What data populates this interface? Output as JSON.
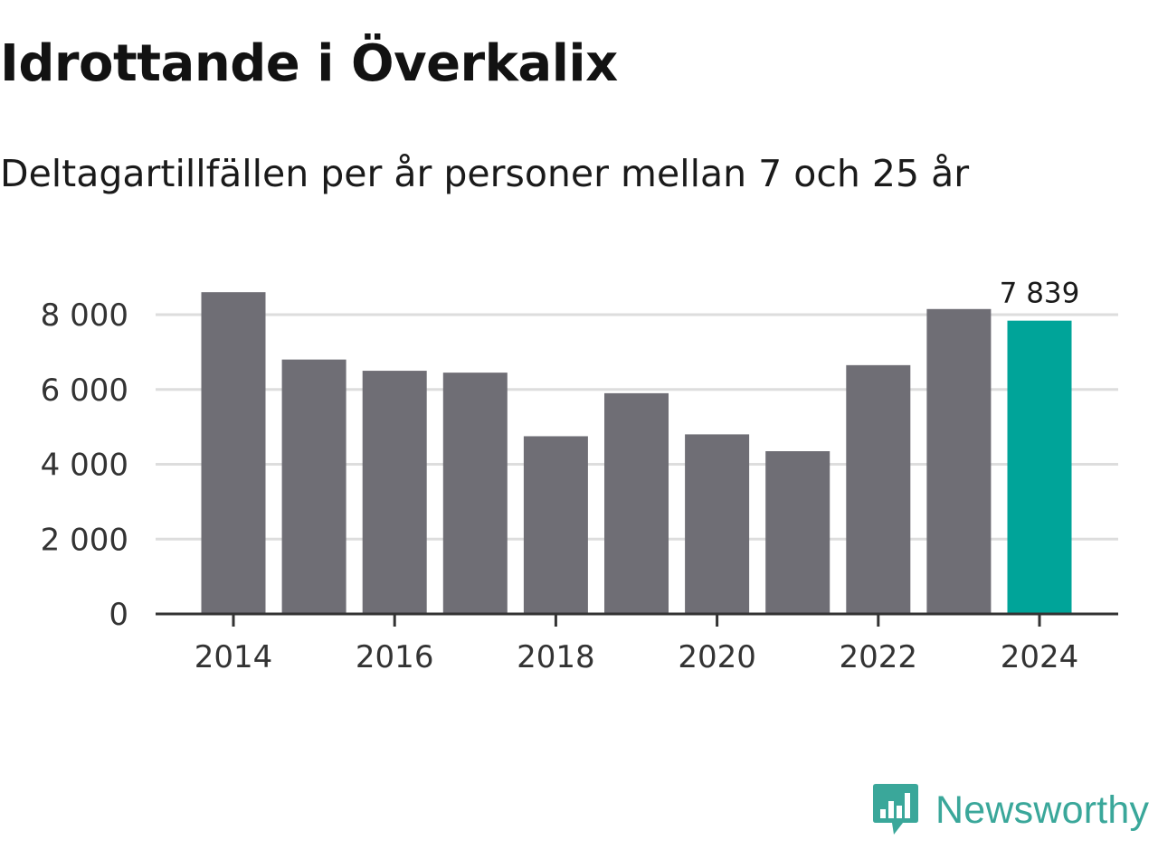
{
  "title": "Idrottande i Överkalix",
  "subtitle": "Deltagartillfällen per år personer mellan 7 och 25 år",
  "brand": {
    "name": "Newsworthy",
    "icon": "newsworthy-logo-icon",
    "color": "#3aa79a"
  },
  "colors": {
    "bar": "#6f6e75",
    "highlight": "#00a499",
    "grid": "#dddddd",
    "axis": "#333333"
  },
  "chart_data": {
    "type": "bar",
    "title": "Idrottande i Överkalix",
    "subtitle": "Deltagartillfällen per år personer mellan 7 och 25 år",
    "categories": [
      "2014",
      "2015",
      "2016",
      "2017",
      "2018",
      "2019",
      "2020",
      "2021",
      "2022",
      "2023",
      "2024"
    ],
    "values": [
      8600,
      6800,
      6500,
      6450,
      4750,
      5900,
      4800,
      4350,
      6650,
      8150,
      7839
    ],
    "highlight_index": 10,
    "highlight_label": "7 839",
    "xticks": [
      "2014",
      "2016",
      "2018",
      "2020",
      "2022",
      "2024"
    ],
    "yticks": [
      0,
      2000,
      4000,
      6000,
      8000
    ],
    "ytick_labels": [
      "0",
      "2 000",
      "4 000",
      "6 000",
      "8 000"
    ],
    "ylim": [
      0,
      8600
    ],
    "xlabel": "",
    "ylabel": "",
    "grid": true,
    "legend": "none"
  }
}
